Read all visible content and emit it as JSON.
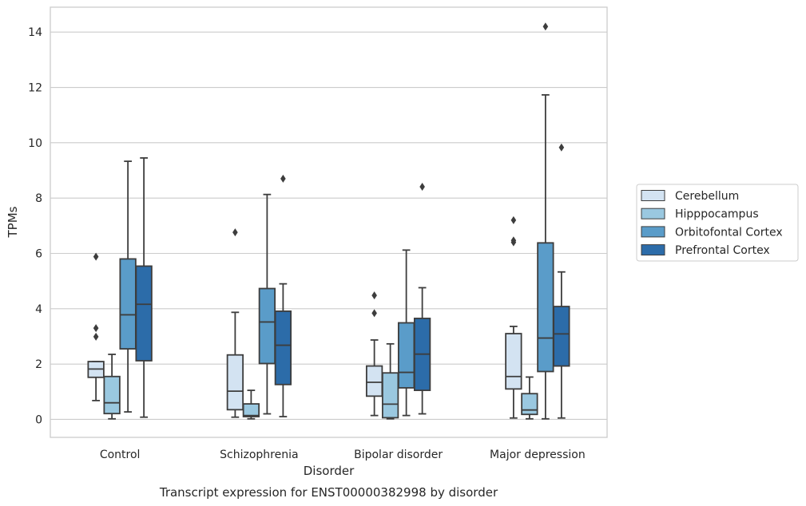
{
  "caption": "Transcript expression for ENST00000382998 by disorder",
  "chart_data": {
    "type": "boxplot",
    "xlabel": "Disorder",
    "ylabel": "TPMs",
    "ylim": [
      -0.65,
      14.9
    ],
    "yticks": [
      0,
      2,
      4,
      6,
      8,
      10,
      12,
      14
    ],
    "grid": "horizontal",
    "legend_position": "right",
    "categories": [
      "Control",
      "Schizophrenia",
      "Bipolar disorder",
      "Major depression"
    ],
    "series": [
      {
        "name": "Cerebellum",
        "color": "#d3e3f2",
        "boxes": [
          {
            "whislo": 0.68,
            "q1": 1.52,
            "med": 1.82,
            "q3": 2.09,
            "whishi": 2.09,
            "fliers": [
              5.88,
              3.3,
              2.99
            ]
          },
          {
            "whislo": 0.08,
            "q1": 0.35,
            "med": 1.02,
            "q3": 2.33,
            "whishi": 3.87,
            "fliers": [
              6.76
            ]
          },
          {
            "whislo": 0.14,
            "q1": 0.84,
            "med": 1.34,
            "q3": 1.93,
            "whishi": 2.87,
            "fliers": [
              4.48,
              3.84
            ]
          },
          {
            "whislo": 0.05,
            "q1": 1.1,
            "med": 1.55,
            "q3": 3.1,
            "whishi": 3.36,
            "fliers": [
              7.2,
              6.47,
              6.4
            ]
          }
        ]
      },
      {
        "name": "Hipppocampus",
        "color": "#9ac8e0",
        "boxes": [
          {
            "whislo": 0.02,
            "q1": 0.21,
            "med": 0.6,
            "q3": 1.55,
            "whishi": 2.35,
            "fliers": []
          },
          {
            "whislo": 0.02,
            "q1": 0.1,
            "med": 0.14,
            "q3": 0.56,
            "whishi": 1.05,
            "fliers": []
          },
          {
            "whislo": 0.02,
            "q1": 0.06,
            "med": 0.55,
            "q3": 1.68,
            "whishi": 2.73,
            "fliers": []
          },
          {
            "whislo": 0.02,
            "q1": 0.18,
            "med": 0.34,
            "q3": 0.93,
            "whishi": 1.53,
            "fliers": []
          }
        ]
      },
      {
        "name": "Orbitofontal Cortex",
        "color": "#5a9cc9",
        "boxes": [
          {
            "whislo": 0.27,
            "q1": 2.55,
            "med": 3.78,
            "q3": 5.8,
            "whishi": 9.33,
            "fliers": []
          },
          {
            "whislo": 0.2,
            "q1": 2.02,
            "med": 3.52,
            "q3": 4.73,
            "whishi": 8.13,
            "fliers": []
          },
          {
            "whislo": 0.14,
            "q1": 1.14,
            "med": 1.7,
            "q3": 3.49,
            "whishi": 6.12,
            "fliers": []
          },
          {
            "whislo": 0.02,
            "q1": 1.73,
            "med": 2.94,
            "q3": 6.38,
            "whishi": 11.73,
            "fliers": [
              14.2
            ]
          }
        ]
      },
      {
        "name": "Prefrontal Cortex",
        "color": "#2c6ca9",
        "boxes": [
          {
            "whislo": 0.08,
            "q1": 2.12,
            "med": 4.16,
            "q3": 5.54,
            "whishi": 9.45,
            "fliers": []
          },
          {
            "whislo": 0.1,
            "q1": 1.26,
            "med": 2.68,
            "q3": 3.91,
            "whishi": 4.9,
            "fliers": [
              8.7
            ]
          },
          {
            "whislo": 0.2,
            "q1": 1.05,
            "med": 2.36,
            "q3": 3.65,
            "whishi": 4.76,
            "fliers": [
              8.41
            ]
          },
          {
            "whislo": 0.05,
            "q1": 1.93,
            "med": 3.09,
            "q3": 4.08,
            "whishi": 5.33,
            "fliers": [
              9.83
            ]
          }
        ]
      }
    ]
  }
}
